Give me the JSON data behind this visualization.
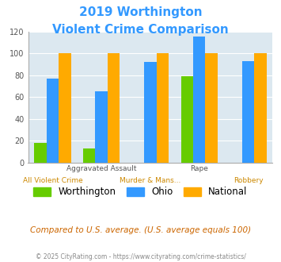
{
  "title_line1": "2019 Worthington",
  "title_line2": "Violent Crime Comparison",
  "title_color": "#3399ff",
  "categories": [
    "All Violent Crime",
    "Aggravated Assault",
    "Murder & Mans...",
    "Rape",
    "Robbery"
  ],
  "worthington": [
    18,
    13,
    0,
    79,
    0
  ],
  "ohio": [
    77,
    65,
    92,
    115,
    93
  ],
  "national": [
    100,
    100,
    100,
    100,
    100
  ],
  "worthington_color": "#66cc00",
  "ohio_color": "#3399ff",
  "national_color": "#ffaa00",
  "ylim": [
    0,
    120
  ],
  "yticks": [
    0,
    20,
    40,
    60,
    80,
    100,
    120
  ],
  "plot_bg_color": "#dce8f0",
  "figure_bg_color": "#ffffff",
  "footnote": "Compared to U.S. average. (U.S. average equals 100)",
  "footnote_color": "#cc6600",
  "copyright": "© 2025 CityRating.com - https://www.cityrating.com/crime-statistics/",
  "copyright_color": "#888888",
  "legend_labels": [
    "Worthington",
    "Ohio",
    "National"
  ],
  "bar_width": 0.25,
  "top_row_labels": {
    "1": "Aggravated Assault",
    "3": "Rape"
  },
  "bot_row_labels": {
    "0": "All Violent Crime",
    "2": "Murder & Mans...",
    "4": "Robbery"
  },
  "top_label_color": "#555555",
  "bot_label_color": "#cc8800"
}
